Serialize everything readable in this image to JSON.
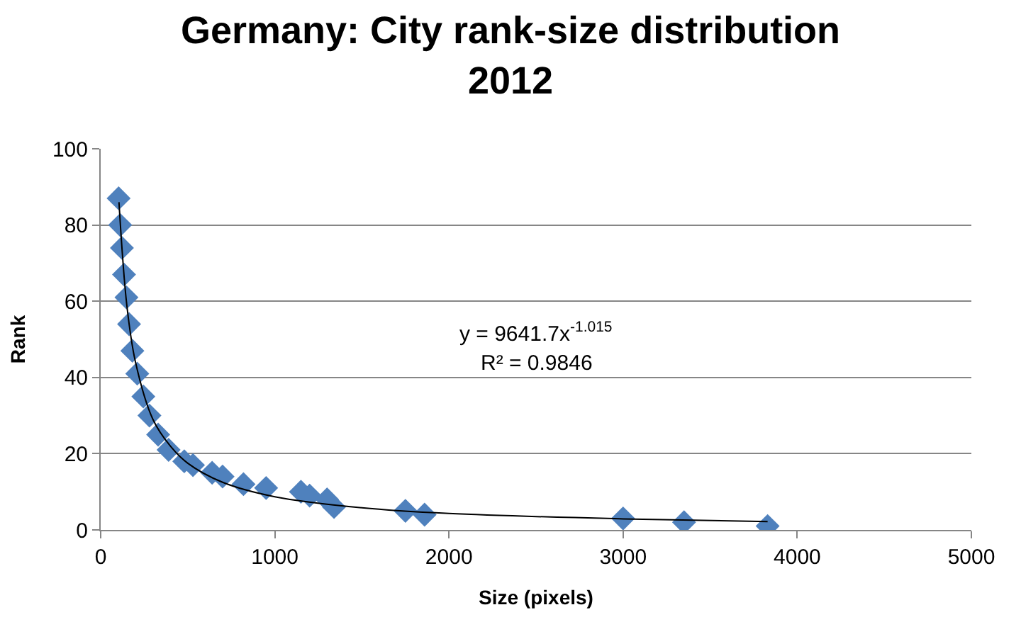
{
  "chart_data": {
    "type": "scatter",
    "title": "Germany: City rank-size distribution 2012",
    "xlabel": "Size (pixels)",
    "ylabel": "Rank",
    "xlim": [
      0,
      5000
    ],
    "xticks": [
      0,
      1000,
      2000,
      3000,
      4000,
      5000
    ],
    "ylim": [
      0,
      100
    ],
    "yticks": [
      0,
      20,
      40,
      60,
      80,
      100
    ],
    "grid": "y",
    "legend": false,
    "marker": "diamond",
    "series": [
      {
        "color": "#4f81bd",
        "x": [
          3830,
          3350,
          3000,
          1860,
          1750,
          1340,
          1300,
          1200,
          1150,
          950,
          820,
          700,
          640,
          530,
          480,
          390,
          330,
          280,
          245,
          210,
          182,
          163,
          148,
          134,
          122,
          112,
          103
        ],
        "values": [
          1,
          2,
          3,
          4,
          5,
          6,
          8,
          9,
          10,
          11,
          12,
          14,
          15,
          17,
          18,
          21,
          25,
          30,
          35,
          41,
          47,
          54,
          61,
          67,
          74,
          80,
          87
        ]
      },
      {
        "type": "line",
        "color": "#000000",
        "marker": "none",
        "line_style": "solid",
        "x": [
          105,
          150,
          200,
          300,
          400,
          500,
          700,
          1000,
          1500,
          2000,
          3000,
          3830
        ],
        "values": [
          86,
          59,
          44,
          29,
          22,
          17.5,
          12.5,
          8.7,
          5.8,
          4.3,
          2.9,
          2.2
        ]
      }
    ],
    "annotations": [
      "y = 9641.7x$^{-1.015}$",
      "R² = 0.9846"
    ]
  }
}
